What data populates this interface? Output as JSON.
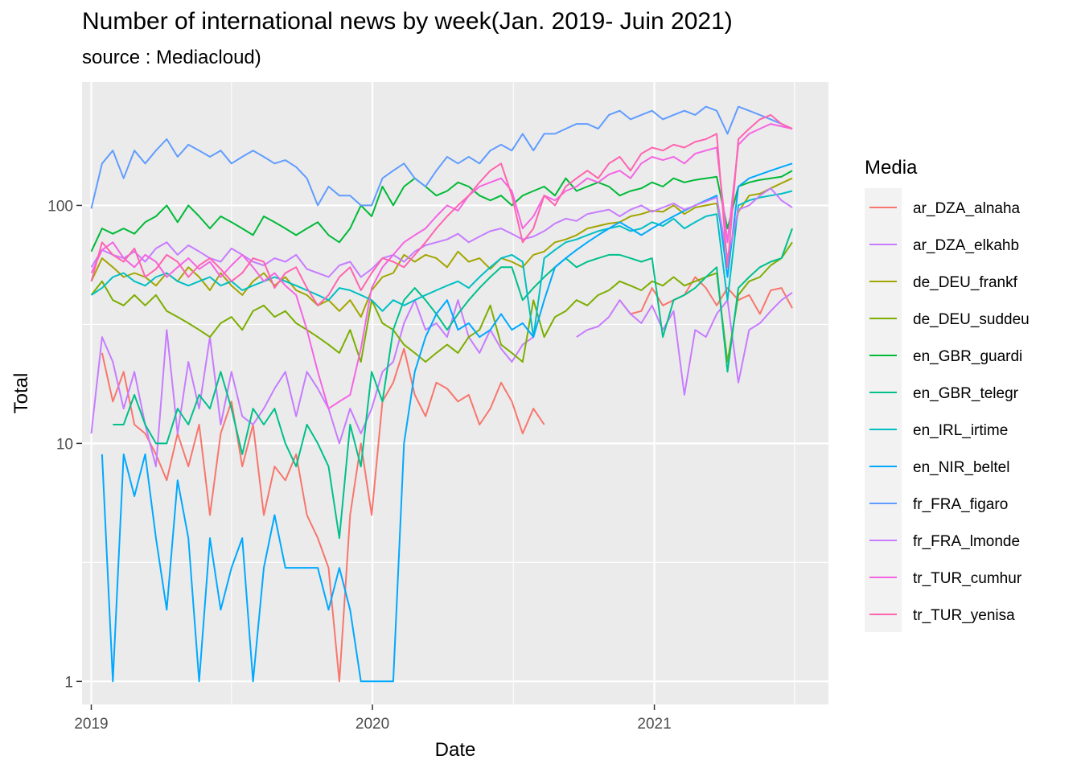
{
  "chart_data": {
    "type": "line",
    "title": "Number of international news by week(Jan. 2019-  Juin 2021)",
    "subtitle": "source : Mediacloud)",
    "xlabel": "Date",
    "ylabel": "Total",
    "y_scale": "log10",
    "ylim": [
      0.8,
      330
    ],
    "xlim": [
      "2018-12-20",
      "2021-08-15"
    ],
    "x_ticks": [
      "2019",
      "2020",
      "2021"
    ],
    "y_ticks": [
      "1",
      "10",
      "100"
    ],
    "grid": true,
    "legend_title": "Media",
    "legend_position": "right",
    "x": [
      "2019-01-01",
      "2019-01-15",
      "2019-01-29",
      "2019-02-12",
      "2019-02-26",
      "2019-03-12",
      "2019-03-26",
      "2019-04-09",
      "2019-04-23",
      "2019-05-07",
      "2019-05-21",
      "2019-06-04",
      "2019-06-18",
      "2019-07-02",
      "2019-07-16",
      "2019-07-30",
      "2019-08-13",
      "2019-08-27",
      "2019-09-10",
      "2019-09-24",
      "2019-10-08",
      "2019-10-22",
      "2019-11-05",
      "2019-11-19",
      "2019-12-03",
      "2019-12-17",
      "2019-12-31",
      "2020-01-14",
      "2020-01-28",
      "2020-02-11",
      "2020-02-25",
      "2020-03-10",
      "2020-03-24",
      "2020-04-07",
      "2020-04-21",
      "2020-05-05",
      "2020-05-19",
      "2020-06-02",
      "2020-06-16",
      "2020-06-30",
      "2020-07-14",
      "2020-07-28",
      "2020-08-11",
      "2020-08-25",
      "2020-09-08",
      "2020-09-22",
      "2020-10-06",
      "2020-10-20",
      "2020-11-03",
      "2020-11-17",
      "2020-12-01",
      "2020-12-15",
      "2020-12-29",
      "2021-01-12",
      "2021-01-26",
      "2021-02-09",
      "2021-02-23",
      "2021-03-09",
      "2021-03-23",
      "2021-04-06",
      "2021-04-20",
      "2021-05-04",
      "2021-05-18",
      "2021-06-01",
      "2021-06-15",
      "2021-06-29"
    ],
    "series": [
      {
        "name": "ar_DZA_alnaha",
        "color": "#F8766D",
        "values": [
          null,
          24,
          15,
          20,
          12,
          11,
          9,
          7,
          11,
          8,
          12,
          5,
          11,
          15,
          8,
          12,
          5,
          8,
          7,
          9,
          5,
          4,
          3,
          1,
          5,
          10,
          5,
          15,
          18,
          25,
          16,
          13,
          18,
          17,
          15,
          16,
          12,
          14,
          18,
          15,
          11,
          14,
          12,
          null,
          null,
          null,
          null,
          null,
          null,
          40,
          35,
          36,
          45,
          38,
          40,
          42,
          50,
          45,
          38,
          45,
          40,
          42,
          35,
          44,
          45,
          37
        ]
      },
      {
        "name": "ar_DZA_elkahb",
        "color": "#C77CFF",
        "values": [
          11,
          28,
          22,
          14,
          20,
          12,
          8,
          30,
          11,
          22,
          14,
          28,
          12,
          20,
          13,
          12,
          14,
          17,
          20,
          13,
          20,
          17,
          14,
          10,
          14,
          11,
          14,
          20,
          22,
          32,
          40,
          30,
          32,
          28,
          40,
          28,
          24,
          30,
          25,
          22,
          26,
          28,
          null,
          null,
          null,
          28,
          30,
          31,
          34,
          40,
          35,
          32,
          38,
          30,
          36,
          16,
          30,
          28,
          35,
          40,
          18,
          30,
          32,
          36,
          40,
          43
        ]
      },
      {
        "name": "de_DEU_frankf",
        "color": "#A3A500",
        "values": [
          48,
          60,
          55,
          50,
          52,
          50,
          46,
          52,
          48,
          55,
          50,
          44,
          52,
          46,
          42,
          48,
          52,
          46,
          50,
          44,
          42,
          38,
          40,
          36,
          40,
          34,
          44,
          50,
          52,
          62,
          58,
          62,
          60,
          55,
          64,
          58,
          60,
          54,
          60,
          58,
          55,
          62,
          64,
          70,
          72,
          75,
          80,
          82,
          84,
          85,
          90,
          92,
          95,
          94,
          100,
          92,
          98,
          100,
          102,
          60,
          94,
          110,
          112,
          118,
          124,
          130
        ]
      },
      {
        "name": "de_DEU_suddeu",
        "color": "#7CAE00",
        "values": [
          42,
          48,
          40,
          38,
          42,
          38,
          42,
          36,
          34,
          32,
          30,
          28,
          32,
          34,
          30,
          36,
          38,
          34,
          36,
          32,
          30,
          28,
          26,
          24,
          30,
          22,
          40,
          32,
          30,
          26,
          24,
          22,
          24,
          26,
          24,
          28,
          30,
          38,
          26,
          24,
          22,
          40,
          28,
          34,
          36,
          40,
          38,
          42,
          44,
          48,
          46,
          44,
          48,
          46,
          50,
          46,
          48,
          50,
          52,
          22,
          42,
          48,
          50,
          56,
          60,
          70
        ]
      },
      {
        "name": "en_GBR_guardi",
        "color": "#00BA38",
        "values": [
          64,
          80,
          76,
          80,
          76,
          85,
          90,
          100,
          85,
          100,
          90,
          80,
          90,
          85,
          80,
          75,
          90,
          85,
          80,
          75,
          80,
          85,
          75,
          70,
          80,
          100,
          90,
          120,
          100,
          120,
          130,
          120,
          110,
          115,
          125,
          120,
          110,
          105,
          110,
          100,
          110,
          115,
          120,
          110,
          130,
          115,
          120,
          125,
          120,
          110,
          115,
          118,
          125,
          120,
          130,
          125,
          128,
          130,
          132,
          80,
          120,
          125,
          128,
          130,
          132,
          140
        ]
      },
      {
        "name": "en_GBR_telegr",
        "color": "#00C08B",
        "values": [
          null,
          null,
          12,
          12,
          16,
          12,
          10,
          10,
          14,
          12,
          16,
          14,
          20,
          14,
          9,
          14,
          12,
          14,
          10,
          8,
          12,
          10,
          8,
          4,
          12,
          8,
          20,
          15,
          30,
          40,
          45,
          40,
          35,
          30,
          35,
          40,
          45,
          50,
          55,
          55,
          40,
          45,
          50,
          55,
          60,
          55,
          58,
          60,
          62,
          62,
          60,
          58,
          60,
          28,
          40,
          42,
          45,
          50,
          55,
          20,
          45,
          50,
          55,
          58,
          60,
          80
        ]
      },
      {
        "name": "en_IRL_irtime",
        "color": "#00BFC4",
        "values": [
          42,
          45,
          50,
          52,
          48,
          46,
          50,
          52,
          48,
          46,
          48,
          50,
          46,
          48,
          44,
          46,
          48,
          50,
          48,
          46,
          44,
          42,
          40,
          45,
          44,
          42,
          40,
          36,
          40,
          38,
          40,
          42,
          44,
          46,
          48,
          45,
          50,
          55,
          60,
          62,
          58,
          28,
          60,
          65,
          70,
          72,
          75,
          78,
          80,
          82,
          78,
          80,
          85,
          82,
          88,
          80,
          85,
          90,
          92,
          40,
          100,
          105,
          108,
          110,
          112,
          115
        ]
      },
      {
        "name": "en_NIR_beltel",
        "color": "#00A9FF",
        "values": [
          null,
          9,
          1,
          9,
          6,
          9,
          4,
          2,
          7,
          4,
          1,
          4,
          2,
          3,
          4,
          1,
          3,
          5,
          3,
          3,
          3,
          3,
          2,
          3,
          2,
          1,
          1,
          1,
          1,
          10,
          20,
          28,
          35,
          40,
          30,
          32,
          28,
          30,
          35,
          30,
          32,
          28,
          40,
          55,
          60,
          65,
          70,
          75,
          80,
          85,
          80,
          75,
          80,
          85,
          90,
          95,
          100,
          105,
          110,
          50,
          120,
          130,
          135,
          140,
          145,
          150
        ]
      },
      {
        "name": "fr_FRA_figaro",
        "color": "#619CFF",
        "values": [
          97,
          150,
          170,
          130,
          170,
          150,
          170,
          190,
          160,
          180,
          170,
          160,
          170,
          150,
          160,
          170,
          160,
          150,
          155,
          145,
          130,
          100,
          120,
          110,
          110,
          100,
          100,
          130,
          140,
          150,
          130,
          120,
          140,
          160,
          150,
          160,
          150,
          170,
          180,
          170,
          200,
          170,
          200,
          200,
          210,
          220,
          220,
          210,
          240,
          250,
          230,
          240,
          250,
          230,
          240,
          250,
          240,
          260,
          250,
          200,
          260,
          250,
          240,
          230,
          220,
          210
        ]
      },
      {
        "name": "fr_FRA_lmonde",
        "color": "#C77CFF",
        "values": [
          55,
          65,
          62,
          60,
          64,
          58,
          66,
          70,
          62,
          68,
          64,
          60,
          58,
          66,
          62,
          58,
          56,
          60,
          58,
          62,
          54,
          52,
          50,
          56,
          58,
          50,
          54,
          60,
          62,
          58,
          64,
          68,
          70,
          72,
          76,
          70,
          74,
          78,
          80,
          76,
          72,
          74,
          78,
          84,
          88,
          86,
          92,
          94,
          96,
          90,
          96,
          100,
          94,
          98,
          102,
          96,
          100,
          104,
          108,
          60,
          96,
          100,
          110,
          118,
          105,
          98
        ]
      },
      {
        "name": "tr_TUR_cumhur",
        "color": "#F564E3",
        "values": [
          52,
          65,
          70,
          60,
          55,
          62,
          58,
          50,
          55,
          60,
          54,
          58,
          50,
          56,
          62,
          55,
          48,
          52,
          46,
          42,
          30,
          20,
          14,
          15,
          16,
          25,
          45,
          55,
          62,
          70,
          75,
          80,
          90,
          100,
          95,
          110,
          120,
          125,
          130,
          115,
          80,
          90,
          110,
          105,
          115,
          120,
          130,
          125,
          135,
          140,
          130,
          150,
          160,
          155,
          160,
          150,
          165,
          170,
          175,
          70,
          180,
          200,
          210,
          220,
          215,
          210
        ]
      },
      {
        "name": "tr_TUR_yenisa",
        "color": "#FF64B0",
        "values": [
          48,
          70,
          62,
          58,
          66,
          50,
          54,
          62,
          58,
          50,
          56,
          60,
          54,
          48,
          52,
          60,
          58,
          45,
          52,
          55,
          45,
          38,
          42,
          50,
          55,
          44,
          52,
          60,
          58,
          55,
          62,
          70,
          80,
          90,
          100,
          110,
          125,
          140,
          150,
          110,
          70,
          80,
          110,
          100,
          120,
          130,
          140,
          130,
          150,
          160,
          140,
          165,
          175,
          170,
          180,
          175,
          185,
          190,
          200,
          55,
          190,
          210,
          230,
          240,
          220,
          210
        ]
      }
    ]
  }
}
